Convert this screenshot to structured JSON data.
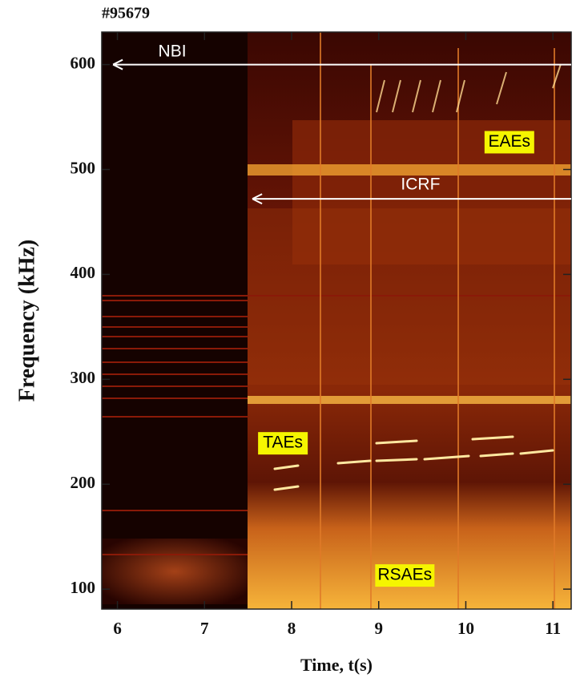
{
  "chart_data": {
    "type": "spectrogram",
    "title": "#95679",
    "xlabel": "Time, t(s)",
    "ylabel": "Frequency (kHz)",
    "xlim": [
      5.82,
      11.21
    ],
    "ylim": [
      81,
      631
    ],
    "xticks": [
      6,
      7,
      8,
      9,
      10,
      11
    ],
    "yticks": [
      100,
      200,
      300,
      400,
      500,
      600
    ],
    "annotations": [
      {
        "text": "NBI",
        "x": 6.63,
        "y": 612,
        "style": "plain",
        "arrow_to": 5.95,
        "arrow_y": 600
      },
      {
        "text": "ICRF",
        "x": 9.48,
        "y": 485,
        "style": "plain",
        "arrow_to": 7.55,
        "arrow_y": 472
      },
      {
        "text": "EAEs",
        "x": 10.5,
        "y": 526,
        "style": "box"
      },
      {
        "text": "TAEs",
        "x": 7.9,
        "y": 239,
        "style": "box"
      },
      {
        "text": "RSAEs",
        "x": 9.3,
        "y": 113,
        "style": "box"
      }
    ]
  }
}
